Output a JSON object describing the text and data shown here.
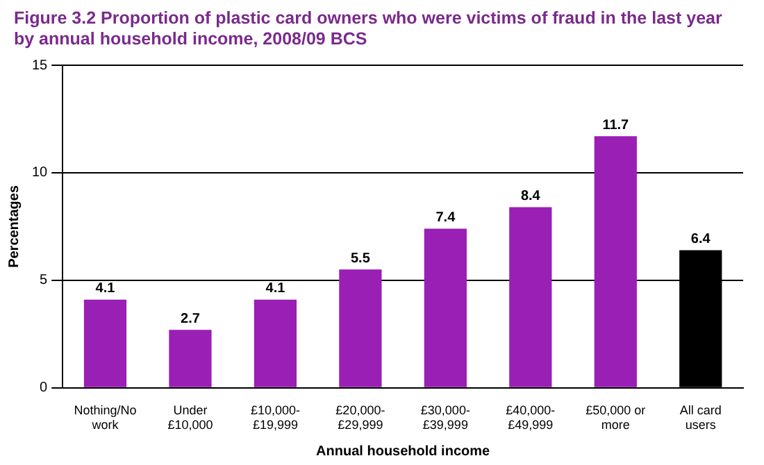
{
  "chart_data": {
    "type": "bar",
    "title": "Figure 3.2 Proportion of plastic card owners who were victims of fraud in the last year\nby annual household income, 2008/09 BCS",
    "xlabel": "Annual household income",
    "ylabel": "Percentages",
    "categories": [
      "Nothing/No\nwork",
      "Under\n£10,000",
      "£10,000-\n£19,999",
      "£20,000-\n£29,999",
      "£30,000-\n£39,999",
      "£40,000-\n£49,999",
      "£50,000 or\nmore",
      "All card\nusers"
    ],
    "values": [
      4.1,
      2.7,
      4.1,
      5.5,
      7.4,
      8.4,
      11.7,
      6.4
    ],
    "colors": [
      "#9a1fb4",
      "#9a1fb4",
      "#9a1fb4",
      "#9a1fb4",
      "#9a1fb4",
      "#9a1fb4",
      "#9a1fb4",
      "#000000"
    ],
    "ylim": [
      0,
      15
    ],
    "yticks": [
      0,
      5,
      10,
      15
    ],
    "grid": "y",
    "data_labels": true
  }
}
